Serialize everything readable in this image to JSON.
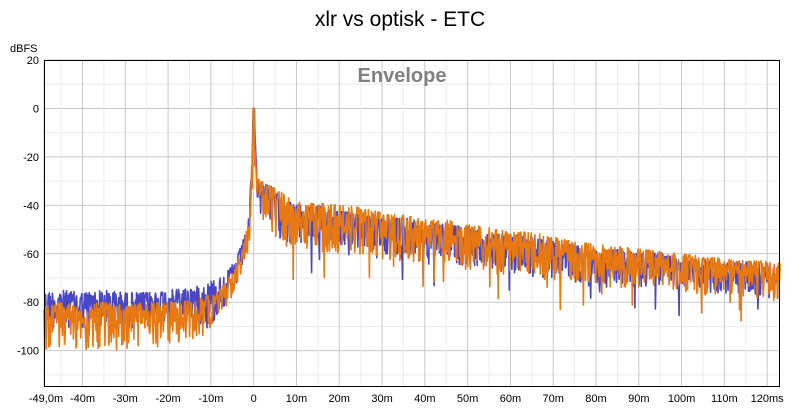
{
  "chart_data": {
    "type": "line",
    "title": "xlr vs optisk - ETC",
    "subtitle": "Envelope",
    "ylabel": "dBFS",
    "xunit": "ms",
    "xlim": [
      -49,
      123
    ],
    "ylim": [
      -115,
      20
    ],
    "yticks": [
      "20",
      "0",
      "-20",
      "-40",
      "-60",
      "-80",
      "-100"
    ],
    "yticks_values": [
      20,
      0,
      -20,
      -40,
      -60,
      -80,
      -100
    ],
    "xticks": [
      "-49,0m",
      "-40m",
      "-30m",
      "-20m",
      "-10m",
      "0",
      "10m",
      "20m",
      "30m",
      "40m",
      "50m",
      "60m",
      "70m",
      "80m",
      "90m",
      "100m",
      "110m",
      "120ms"
    ],
    "xticks_values": [
      -49,
      -40,
      -30,
      -20,
      -10,
      0,
      10,
      20,
      30,
      40,
      50,
      60,
      70,
      80,
      90,
      100,
      110,
      120
    ],
    "grid": true,
    "series": [
      {
        "color": "#4a46c8",
        "x": [
          -49,
          -45,
          -40,
          -35,
          -30,
          -25,
          -20,
          -15,
          -12,
          -10,
          -8,
          -6,
          -4,
          -2,
          -1,
          0,
          1,
          2,
          3,
          5,
          8,
          10,
          15,
          20,
          25,
          30,
          35,
          40,
          45,
          50,
          55,
          60,
          65,
          70,
          75,
          80,
          85,
          90,
          95,
          100,
          105,
          110,
          115,
          120,
          123
        ],
        "upper": [
          -76,
          -75,
          -76,
          -75,
          -76,
          -76,
          -75,
          -74,
          -73,
          -71,
          -70,
          -67,
          -62,
          -52,
          -44,
          0,
          -30,
          -32,
          -30,
          -34,
          -38,
          -40,
          -40,
          -42,
          -44,
          -45,
          -45,
          -47,
          -48,
          -49,
          -52,
          -52,
          -53,
          -55,
          -56,
          -59,
          -58,
          -60,
          -59,
          -63,
          -62,
          -64,
          -63,
          -64,
          -65
        ],
        "lower": [
          -92,
          -90,
          -91,
          -90,
          -91,
          -90,
          -88,
          -88,
          -90,
          -92,
          -85,
          -80,
          -74,
          -62,
          -54,
          -18,
          -40,
          -46,
          -44,
          -52,
          -56,
          -58,
          -56,
          -57,
          -58,
          -60,
          -62,
          -64,
          -64,
          -65,
          -67,
          -68,
          -70,
          -70,
          -72,
          -73,
          -73,
          -74,
          -74,
          -75,
          -76,
          -77,
          -77,
          -78,
          -79
        ]
      },
      {
        "color": "#e87811",
        "x": [
          -49,
          -45,
          -40,
          -35,
          -30,
          -25,
          -20,
          -15,
          -12,
          -10,
          -8,
          -6,
          -4,
          -2,
          -1,
          0,
          1,
          2,
          3,
          5,
          8,
          10,
          15,
          20,
          25,
          30,
          35,
          40,
          45,
          50,
          55,
          60,
          65,
          70,
          75,
          80,
          85,
          90,
          95,
          100,
          105,
          110,
          115,
          120,
          123
        ],
        "upper": [
          -82,
          -80,
          -81,
          -80,
          -81,
          -80,
          -80,
          -79,
          -78,
          -77,
          -75,
          -70,
          -64,
          -53,
          -45,
          0,
          -29,
          -30,
          -31,
          -33,
          -36,
          -38,
          -39,
          -40,
          -41,
          -43,
          -44,
          -46,
          -46,
          -48,
          -49,
          -51,
          -51,
          -53,
          -55,
          -56,
          -57,
          -58,
          -59,
          -60,
          -61,
          -62,
          -63,
          -63,
          -64
        ],
        "lower": [
          -100,
          -99,
          -100,
          -101,
          -100,
          -99,
          -98,
          -97,
          -94,
          -90,
          -86,
          -81,
          -75,
          -64,
          -56,
          -22,
          -42,
          -48,
          -47,
          -55,
          -58,
          -60,
          -59,
          -60,
          -61,
          -62,
          -63,
          -65,
          -66,
          -67,
          -68,
          -69,
          -70,
          -71,
          -72,
          -73,
          -74,
          -74,
          -75,
          -76,
          -77,
          -77,
          -78,
          -79,
          -80
        ]
      }
    ]
  }
}
